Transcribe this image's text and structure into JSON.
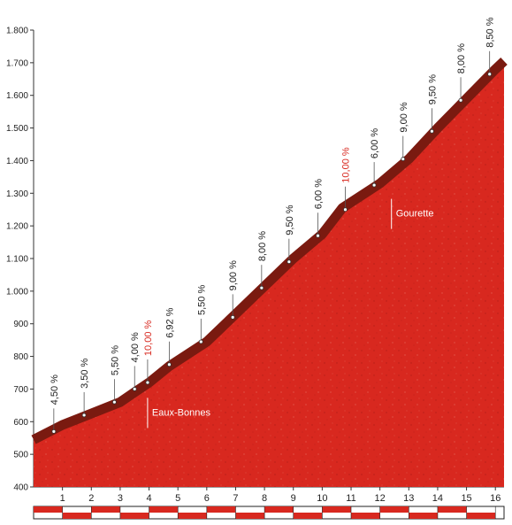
{
  "chart_data": {
    "type": "area",
    "xlabel": "",
    "ylabel": "",
    "xlim": [
      0,
      16.3
    ],
    "ylim": [
      400,
      1800
    ],
    "y_ticks": [
      400,
      500,
      600,
      700,
      800,
      900,
      1000,
      1100,
      1200,
      1300,
      1400,
      1500,
      1600,
      1700,
      1800
    ],
    "y_tick_labels": [
      "400",
      "500",
      "600",
      "700",
      "800",
      "900",
      "1.000",
      "1.100",
      "1.200",
      "1.300",
      "1.400",
      "1.500",
      "1.600",
      "1.700",
      "1.800"
    ],
    "x_ticks": [
      1,
      2,
      3,
      4,
      5,
      6,
      7,
      8,
      9,
      10,
      11,
      12,
      13,
      14,
      15,
      16
    ],
    "x_tick_labels": [
      "1",
      "2",
      "3",
      "4",
      "5",
      "6",
      "7",
      "8",
      "9",
      "10",
      "11",
      "12",
      "13",
      "14",
      "15",
      "16"
    ],
    "profile": {
      "x": [
        0,
        1,
        2,
        3,
        3.5,
        4,
        4.7,
        6,
        7,
        8,
        9,
        10,
        10.7,
        12,
        13,
        14,
        15,
        16,
        16.3
      ],
      "y": [
        545,
        590,
        625,
        660,
        690,
        720,
        770,
        845,
        930,
        1015,
        1100,
        1175,
        1255,
        1330,
        1405,
        1500,
        1590,
        1680,
        1705
      ]
    },
    "grades": [
      {
        "x": 0.7,
        "y": 570,
        "label": "4,50 %",
        "steep": false
      },
      {
        "x": 1.75,
        "y": 620,
        "label": "3,50 %",
        "steep": false
      },
      {
        "x": 2.8,
        "y": 660,
        "label": "5,50 %",
        "steep": false
      },
      {
        "x": 3.5,
        "y": 700,
        "label": "4,00 %",
        "steep": false
      },
      {
        "x": 3.95,
        "y": 720,
        "label": "10,00 %",
        "steep": true
      },
      {
        "x": 4.7,
        "y": 775,
        "label": "6,92 %",
        "steep": false
      },
      {
        "x": 5.8,
        "y": 845,
        "label": "5,50 %",
        "steep": false
      },
      {
        "x": 6.9,
        "y": 920,
        "label": "9,00 %",
        "steep": false
      },
      {
        "x": 7.9,
        "y": 1010,
        "label": "8,00 %",
        "steep": false
      },
      {
        "x": 8.85,
        "y": 1090,
        "label": "9,50 %",
        "steep": false
      },
      {
        "x": 9.85,
        "y": 1170,
        "label": "6,00 %",
        "steep": false
      },
      {
        "x": 10.8,
        "y": 1250,
        "label": "10,00 %",
        "steep": true
      },
      {
        "x": 11.8,
        "y": 1325,
        "label": "6,00 %",
        "steep": false
      },
      {
        "x": 12.8,
        "y": 1405,
        "label": "9,00 %",
        "steep": false
      },
      {
        "x": 13.8,
        "y": 1490,
        "label": "9,50 %",
        "steep": false
      },
      {
        "x": 14.8,
        "y": 1585,
        "label": "8,00 %",
        "steep": false
      },
      {
        "x": 15.8,
        "y": 1665,
        "label": "8,50 %",
        "steep": false
      }
    ],
    "places": [
      {
        "name": "Eaux-Bonnes",
        "x": 3.95,
        "y": 700
      },
      {
        "name": "Gourette",
        "x": 12.4,
        "y": 1310
      }
    ],
    "colors": {
      "fill": "#d8281f",
      "crest": "#7a1a10",
      "grade_normal": "#222222",
      "grade_steep": "#d8281f",
      "axis": "#333333"
    }
  }
}
